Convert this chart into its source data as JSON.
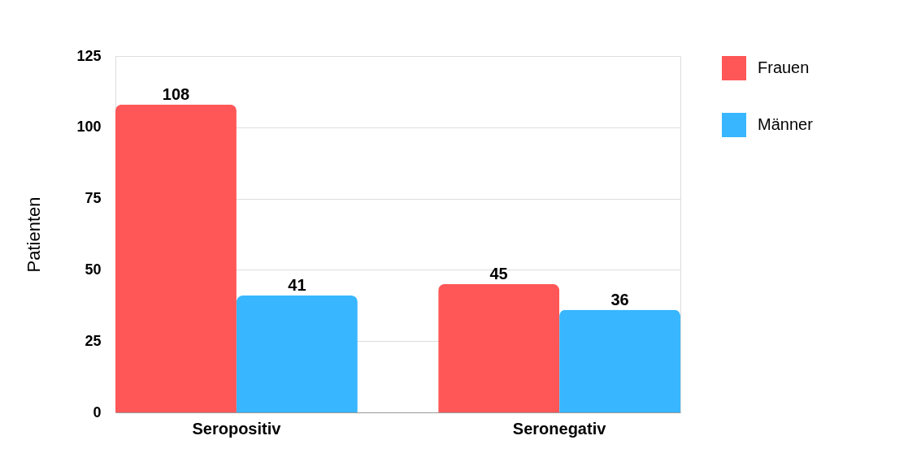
{
  "chart_data": {
    "type": "bar",
    "ylabel": "Patienten",
    "categories": [
      "Seropositiv",
      "Seronegativ"
    ],
    "series": [
      {
        "name": "Frauen",
        "color": "#ff5757",
        "values": [
          108,
          45
        ]
      },
      {
        "name": "Männer",
        "color": "#38b6ff",
        "values": [
          41,
          36
        ]
      }
    ],
    "ylim": [
      0,
      125
    ],
    "yticks": [
      0,
      25,
      50,
      75,
      100,
      125
    ],
    "grid": "y",
    "legend": "right",
    "data_labels": true
  }
}
